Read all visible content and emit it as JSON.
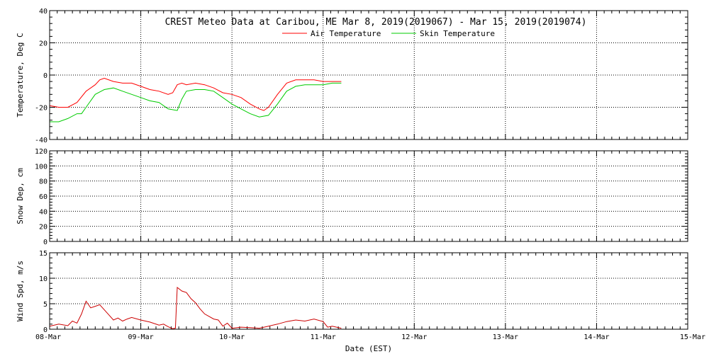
{
  "chart_data": {
    "type": "line",
    "title": "CREST Meteo Data at Caribou, ME   Mar  8, 2019(2019067) - Mar 15, 2019(2019074)",
    "xlabel": "Date (EST)",
    "x_tick_labels": [
      "08-Mar",
      "09-Mar",
      "10-Mar",
      "11-Mar",
      "12-Mar",
      "13-Mar",
      "14-Mar",
      "15-Mar"
    ],
    "xlim": [
      0,
      7
    ],
    "grid": true,
    "panels": [
      {
        "ylabel": "Temperature, Deg C",
        "ylim": [
          -40,
          40
        ],
        "y_ticks": [
          -40,
          -20,
          0,
          20,
          40
        ],
        "legend_position": "top-center",
        "series": [
          {
            "name": "Air Temperature",
            "color": "#ff0000",
            "x": [
              0,
              0.1,
              0.2,
              0.3,
              0.4,
              0.5,
              0.55,
              0.6,
              0.7,
              0.8,
              0.9,
              1.0,
              1.1,
              1.2,
              1.3,
              1.35,
              1.4,
              1.45,
              1.5,
              1.6,
              1.7,
              1.8,
              1.9,
              2.0,
              2.1,
              2.2,
              2.3,
              2.35,
              2.4,
              2.5,
              2.6,
              2.7,
              2.8,
              2.9,
              3.0,
              3.1,
              3.2
            ],
            "values": [
              -19,
              -20,
              -20,
              -17,
              -10,
              -6,
              -3,
              -2,
              -4,
              -5,
              -5,
              -7,
              -9,
              -10,
              -12,
              -11,
              -6,
              -5,
              -6,
              -5,
              -6,
              -8,
              -11,
              -12,
              -14,
              -18,
              -21,
              -22,
              -20,
              -12,
              -5,
              -3,
              -3,
              -3,
              -4,
              -4,
              -4
            ]
          },
          {
            "name": "Skin Temperature",
            "color": "#00cc00",
            "x": [
              0,
              0.1,
              0.2,
              0.3,
              0.35,
              0.4,
              0.5,
              0.6,
              0.7,
              0.8,
              0.9,
              1.0,
              1.1,
              1.2,
              1.3,
              1.4,
              1.45,
              1.5,
              1.6,
              1.7,
              1.8,
              1.9,
              2.0,
              2.1,
              2.2,
              2.3,
              2.4,
              2.5,
              2.6,
              2.7,
              2.8,
              2.9,
              3.0,
              3.1,
              3.2
            ],
            "values": [
              -29,
              -29,
              -27,
              -24,
              -24,
              -20,
              -12,
              -9,
              -8,
              -10,
              -12,
              -14,
              -16,
              -17,
              -21,
              -22,
              -15,
              -10,
              -9,
              -9,
              -10,
              -14,
              -18,
              -21,
              -24,
              -26,
              -25,
              -18,
              -10,
              -7,
              -6,
              -6,
              -6,
              -5,
              -5
            ]
          }
        ]
      },
      {
        "ylabel": "Snow Dep, cm",
        "ylim": [
          0,
          120
        ],
        "y_ticks": [
          0,
          20,
          40,
          60,
          80,
          100,
          120
        ],
        "series": []
      },
      {
        "ylabel": "Wind Spd, m/s",
        "ylim": [
          0,
          15
        ],
        "y_ticks": [
          0,
          5,
          10,
          15
        ],
        "series": [
          {
            "color": "#cc0000",
            "x": [
              0,
              0.1,
              0.2,
              0.25,
              0.3,
              0.35,
              0.4,
              0.45,
              0.5,
              0.55,
              0.6,
              0.65,
              0.7,
              0.75,
              0.8,
              0.85,
              0.9,
              1.0,
              1.1,
              1.2,
              1.25,
              1.3,
              1.35,
              1.38,
              1.4,
              1.45,
              1.5,
              1.55,
              1.6,
              1.65,
              1.7,
              1.8,
              1.85,
              1.9,
              1.95,
              2.0,
              2.1,
              2.2,
              2.3,
              2.4,
              2.5,
              2.6,
              2.7,
              2.8,
              2.9,
              3.0,
              3.05,
              3.1,
              3.2
            ],
            "values": [
              0.6,
              1.0,
              0.7,
              1.6,
              1.2,
              3.0,
              5.5,
              4.2,
              4.5,
              4.8,
              3.8,
              2.8,
              1.8,
              2.2,
              1.6,
              2.0,
              2.3,
              1.8,
              1.4,
              0.8,
              1.0,
              0.5,
              0.1,
              0.2,
              8.2,
              7.5,
              7.2,
              6.0,
              5.2,
              4.0,
              3.0,
              2.0,
              1.8,
              0.6,
              1.2,
              0.2,
              0.4,
              0.3,
              0.2,
              0.6,
              1.0,
              1.5,
              1.8,
              1.6,
              2.0,
              1.5,
              0.4,
              0.6,
              0.2
            ]
          }
        ]
      }
    ]
  }
}
